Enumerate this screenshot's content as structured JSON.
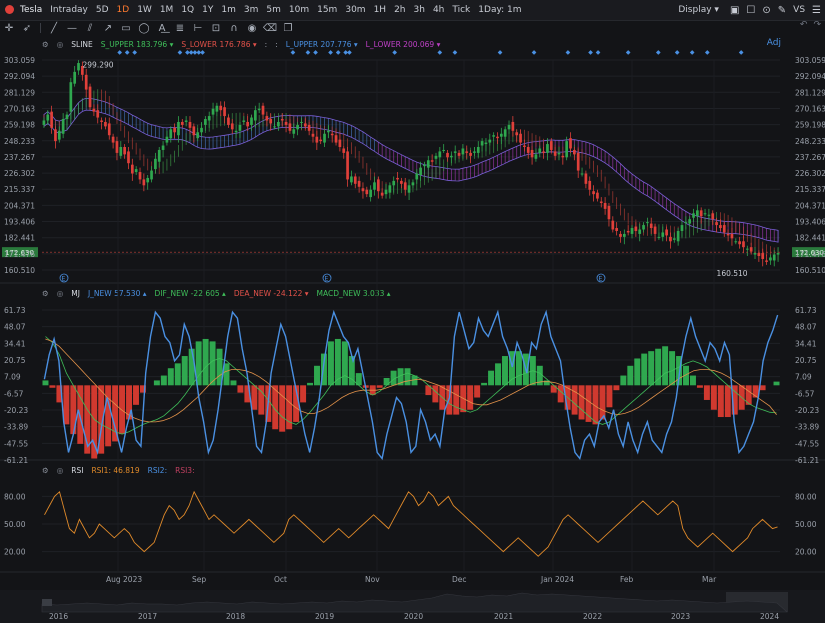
{
  "toolbar": {
    "symbol": "Tesla",
    "periods": [
      "Intraday",
      "5D",
      "1D",
      "1W",
      "1M",
      "1Q",
      "1Y",
      "1m",
      "3m",
      "5m",
      "10m",
      "15m",
      "30m",
      "1H",
      "2h",
      "3h",
      "4h",
      "Tick",
      "1Day: 1m"
    ],
    "active_period": "1D",
    "display_label": "Display",
    "vs_label": "VS",
    "adj_label": "Adj"
  },
  "main_legend": {
    "indicator": "SLINE",
    "items": [
      {
        "label": "S_UPPER",
        "value": "183.796",
        "color": "#3fbf5a"
      },
      {
        "label": "S_LOWER",
        "value": "176.786",
        "color": "#e2524a"
      },
      {
        "label": "L_UPPER",
        "value": "207.776",
        "color": "#4a90e2"
      },
      {
        "label": "L_LOWER",
        "value": "200.069",
        "color": "#c040c8"
      }
    ],
    "separators": [
      ":",
      ":"
    ]
  },
  "price_axis": {
    "ticks": [
      "303.059",
      "292.094",
      "281.129",
      "270.163",
      "259.198",
      "248.233",
      "237.267",
      "226.302",
      "215.337",
      "204.371",
      "193.406",
      "182.441",
      "171.476",
      "160.510"
    ],
    "current_price": "172.630",
    "high_label": "299.290",
    "low_label": "160.510"
  },
  "macd_legend": {
    "indicator": "MJ",
    "items": [
      {
        "label": "J_NEW",
        "value": "57.530",
        "color": "#4a90e2"
      },
      {
        "label": "DIF_NEW",
        "value": "-22.605",
        "color": "#3fbf5a"
      },
      {
        "label": "DEA_NEW",
        "value": "-24.122",
        "color": "#e2524a"
      },
      {
        "label": "MACD_NEW",
        "value": "3.033",
        "color": "#3fbf5a"
      }
    ],
    "ticks": [
      "61.73",
      "48.07",
      "34.41",
      "20.75",
      "7.09",
      "-6.57",
      "-20.23",
      "-33.89",
      "-47.55",
      "-61.21"
    ]
  },
  "rsi_legend": {
    "indicator": "RSI",
    "items": [
      {
        "label": "RSI1",
        "value": "46.819",
        "color": "#e08a2a"
      },
      {
        "label": "RSI2",
        "value": "",
        "color": "#4a90e2"
      },
      {
        "label": "RSI3",
        "value": "",
        "color": "#c04060"
      }
    ],
    "ticks": [
      "80.00",
      "50.00",
      "20.00"
    ]
  },
  "time_axis": [
    "Aug 2023",
    "Sep",
    "Oct",
    "Nov",
    "Dec",
    "Jan 2024",
    "Feb",
    "Mar"
  ],
  "navigator_years": [
    "2016",
    "2017",
    "2018",
    "2019",
    "2020",
    "2021",
    "2022",
    "2023",
    "2024"
  ],
  "colors": {
    "up": "#2fa84f",
    "down": "#e0403a",
    "accent": "#ff7a2f"
  },
  "chart_data": [
    {
      "type": "candlestick",
      "indicator": "SLINE",
      "x_labels": [
        "Aug 2023",
        "Sep",
        "Oct",
        "Nov",
        "Dec",
        "Jan 2024",
        "Feb",
        "Mar"
      ],
      "ylim": [
        160.51,
        303.059
      ],
      "close": [
        262,
        266,
        257,
        248,
        255,
        263,
        266,
        288,
        295,
        301,
        293,
        283,
        271,
        268,
        264,
        261,
        258,
        252,
        247,
        240,
        244,
        239,
        233,
        226,
        229,
        222,
        218,
        223,
        228,
        236,
        242,
        245,
        251,
        256,
        254,
        261,
        259,
        262,
        257,
        252,
        254,
        257,
        263,
        265,
        270,
        272,
        269,
        265,
        259,
        256,
        255,
        259,
        262,
        258,
        264,
        269,
        270,
        266,
        262,
        260,
        258,
        261,
        262,
        259,
        255,
        256,
        259,
        261,
        258,
        255,
        251,
        247,
        248,
        253,
        255,
        252,
        247,
        244,
        240,
        222,
        224,
        219,
        217,
        214,
        212,
        215,
        220,
        214,
        211,
        215,
        218,
        221,
        222,
        219,
        215,
        218,
        220,
        226,
        230,
        232,
        235,
        234,
        238,
        241,
        242,
        237,
        238,
        241,
        238,
        243,
        240,
        238,
        241,
        244,
        248,
        247,
        249,
        252,
        250,
        253,
        256,
        259,
        255,
        252,
        247,
        244,
        240,
        237,
        239,
        243,
        240,
        246,
        242,
        238,
        240,
        237,
        248,
        243,
        239,
        228,
        226,
        219,
        215,
        212,
        209,
        206,
        202,
        195,
        188,
        187,
        183,
        185,
        186,
        189,
        187,
        188,
        191,
        193,
        189,
        185,
        183,
        186,
        184,
        180,
        182,
        187,
        191,
        193,
        195,
        199,
        201,
        197,
        199,
        198,
        195,
        191,
        189,
        186,
        184,
        182,
        180,
        178,
        176,
        175,
        173,
        172,
        170,
        168,
        166,
        169,
        171,
        172
      ],
      "s_upper_last": 183.796,
      "s_lower_last": 176.786,
      "l_upper_last": 207.776,
      "l_lower_last": 200.069,
      "last": 172.63,
      "high": 299.29,
      "low": 160.51
    },
    {
      "type": "line",
      "indicator": "MJ",
      "ylim": [
        -61.21,
        61.73
      ],
      "series": [
        {
          "name": "J_NEW",
          "values": [
            5,
            25,
            38,
            20,
            -30,
            -55,
            -40,
            -20,
            -35,
            -50,
            -45,
            -55,
            -30,
            -10,
            -25,
            -40,
            -55,
            -35,
            -20,
            -45,
            -50,
            10,
            40,
            60,
            55,
            40,
            35,
            20,
            25,
            50,
            40,
            20,
            -10,
            -30,
            -55,
            -45,
            -20,
            10,
            40,
            60,
            55,
            30,
            10,
            -20,
            -50,
            -55,
            -30,
            10,
            30,
            50,
            40,
            20,
            0,
            -20,
            -40,
            -55,
            -35,
            -10,
            20,
            45,
            60,
            50,
            40,
            35,
            20,
            30,
            10,
            -10,
            -30,
            -55,
            -60,
            -40,
            -25,
            -10,
            -15,
            -30,
            -55,
            -50,
            -20,
            -30,
            -45,
            -40,
            -50,
            -20,
            -10,
            40,
            60,
            45,
            30,
            35,
            55,
            45,
            40,
            50,
            60,
            40,
            30,
            15,
            35,
            25,
            10,
            35,
            30,
            50,
            60,
            40,
            30,
            20,
            -10,
            -35,
            -55,
            -60,
            -45,
            -40,
            -50,
            -30,
            -25,
            -35,
            -20,
            -40,
            -50,
            -30,
            -45,
            -55,
            -40,
            -30,
            -45,
            -50,
            -55,
            -40,
            -30,
            -10,
            20,
            40,
            55,
            40,
            30,
            20,
            35,
            30,
            20,
            35,
            25,
            -30,
            -55,
            -50,
            -40,
            -30,
            -10,
            20,
            35,
            45,
            57.53
          ]
        },
        {
          "name": "DIF_NEW",
          "values": [
            40,
            35,
            25,
            10,
            0,
            -10,
            -20,
            -28,
            -32,
            -35,
            -38,
            -40,
            -38,
            -35,
            -32,
            -30,
            -28,
            -25,
            -20,
            -15,
            -8,
            0,
            8,
            15,
            20,
            22,
            20,
            15,
            10,
            5,
            0,
            -5,
            -12,
            -20,
            -26,
            -30,
            -32,
            -28,
            -22,
            -15,
            -8,
            0,
            5,
            8,
            5,
            0,
            -5,
            -8,
            -5,
            0,
            5,
            8,
            10,
            8,
            5,
            0,
            -5,
            -10,
            -15,
            -18,
            -20,
            -22,
            -20,
            -15,
            -10,
            -5,
            0,
            5,
            8,
            10,
            12,
            10,
            5,
            0,
            -5,
            -10,
            -15,
            -20,
            -25,
            -30,
            -32,
            -30,
            -25,
            -20,
            -15,
            -10,
            -5,
            0,
            5,
            10,
            12,
            15,
            18,
            20,
            18,
            15,
            10,
            5,
            0,
            -5,
            -10,
            -15,
            -18,
            -20,
            -22,
            -22.605
          ]
        },
        {
          "name": "DEA_NEW",
          "values": [
            38,
            36,
            32,
            26,
            20,
            14,
            8,
            2,
            -4,
            -10,
            -15,
            -20,
            -24,
            -27,
            -29,
            -30,
            -30,
            -29,
            -27,
            -24,
            -20,
            -15,
            -10,
            -4,
            2,
            7,
            11,
            13,
            13,
            12,
            10,
            7,
            3,
            -2,
            -7,
            -12,
            -17,
            -21,
            -23,
            -23,
            -21,
            -18,
            -14,
            -10,
            -7,
            -5,
            -4,
            -4,
            -4,
            -3,
            -1,
            1,
            3,
            4,
            5,
            4,
            2,
            0,
            -3,
            -6,
            -9,
            -12,
            -15,
            -16,
            -16,
            -14,
            -12,
            -9,
            -6,
            -3,
            0,
            2,
            3,
            3,
            2,
            0,
            -3,
            -6,
            -10,
            -14,
            -18,
            -21,
            -23,
            -24,
            -23,
            -21,
            -18,
            -14,
            -10,
            -6,
            -2,
            2,
            6,
            9,
            12,
            13,
            13,
            12,
            10,
            7,
            3,
            -1,
            -5,
            -9,
            -13,
            -17,
            -24.122
          ]
        },
        {
          "name": "MACD_NEW",
          "values": [
            4,
            -2,
            -14,
            -32,
            -40,
            -48,
            -56,
            -60,
            -56,
            -50,
            -46,
            -40,
            -28,
            -16,
            -6,
            0,
            4,
            8,
            14,
            18,
            24,
            30,
            36,
            38,
            36,
            30,
            18,
            4,
            -6,
            -14,
            -20,
            -24,
            -30,
            -36,
            -38,
            -36,
            -30,
            -14,
            2,
            16,
            26,
            36,
            38,
            36,
            24,
            10,
            -2,
            -8,
            -2,
            6,
            12,
            14,
            14,
            8,
            0,
            -8,
            -14,
            -20,
            -24,
            -24,
            -22,
            -20,
            -10,
            2,
            12,
            18,
            24,
            28,
            28,
            26,
            24,
            16,
            4,
            -6,
            -14,
            -20,
            -24,
            -28,
            -30,
            -32,
            -28,
            -18,
            -4,
            8,
            16,
            22,
            26,
            28,
            30,
            32,
            28,
            24,
            16,
            8,
            -2,
            -12,
            -20,
            -26,
            -26,
            -24,
            -20,
            -16,
            -10,
            -4,
            0,
            3.033
          ]
        }
      ]
    },
    {
      "type": "line",
      "indicator": "RSI",
      "ylim": [
        0,
        100
      ],
      "series": [
        {
          "name": "RSI1",
          "values": [
            60,
            70,
            80,
            85,
            65,
            45,
            40,
            55,
            45,
            35,
            40,
            50,
            45,
            40,
            35,
            40,
            45,
            40,
            30,
            25,
            20,
            25,
            30,
            45,
            60,
            70,
            65,
            55,
            60,
            70,
            85,
            75,
            65,
            55,
            60,
            55,
            50,
            45,
            40,
            45,
            50,
            55,
            50,
            45,
            40,
            35,
            30,
            35,
            40,
            55,
            60,
            55,
            50,
            45,
            40,
            35,
            30,
            35,
            40,
            45,
            40,
            35,
            40,
            45,
            50,
            55,
            60,
            55,
            50,
            45,
            55,
            65,
            75,
            85,
            80,
            70,
            75,
            85,
            80,
            70,
            75,
            80,
            70,
            65,
            60,
            55,
            50,
            45,
            40,
            35,
            30,
            25,
            20,
            25,
            30,
            35,
            30,
            25,
            20,
            15,
            20,
            25,
            35,
            45,
            55,
            60,
            55,
            50,
            45,
            40,
            35,
            30,
            35,
            40,
            45,
            50,
            55,
            60,
            65,
            70,
            75,
            70,
            65,
            60,
            65,
            70,
            75,
            70,
            45,
            35,
            30,
            25,
            30,
            35,
            40,
            35,
            30,
            25,
            20,
            25,
            30,
            35,
            45,
            50,
            55,
            50,
            45,
            46.819
          ]
        }
      ]
    }
  ]
}
